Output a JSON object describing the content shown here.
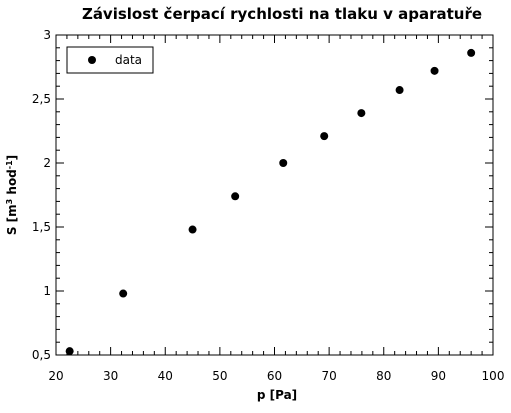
{
  "chart_data": {
    "type": "scatter",
    "title": "Závislost čerpací rychlosti na tlaku v aparatuře",
    "xlabel": "p [Pa]",
    "ylabel_parts": [
      "S [m",
      "3",
      " hod",
      "-1",
      "]"
    ],
    "xlim": [
      20,
      100
    ],
    "ylim": [
      0.5,
      3
    ],
    "x_ticks": [
      20,
      30,
      40,
      50,
      60,
      70,
      80,
      90,
      100
    ],
    "x_tick_labels": [
      "20",
      "30",
      "40",
      "50",
      "60",
      "70",
      "80",
      "90",
      "100"
    ],
    "y_ticks": [
      0.5,
      1,
      1.5,
      2,
      2.5,
      3
    ],
    "y_tick_labels": [
      "0,5",
      "1",
      "1,5",
      "2",
      "2,5",
      "3"
    ],
    "series": [
      {
        "name": "data",
        "x": [
          22.5,
          32.3,
          45.0,
          52.8,
          61.6,
          69.1,
          75.9,
          82.9,
          89.3,
          96.0
        ],
        "y": [
          0.53,
          0.98,
          1.48,
          1.74,
          2.0,
          2.21,
          2.39,
          2.57,
          2.72,
          2.86
        ]
      }
    ],
    "legend_position": "top-left",
    "grid": false,
    "marker_color": "#000000"
  }
}
